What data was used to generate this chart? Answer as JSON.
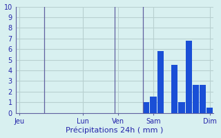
{
  "background_color": "#d8f0f0",
  "grid_color": "#b8d0d0",
  "bar_color": "#1a4fd6",
  "vline_color": "#6060a0",
  "xlabel": "Précipitations 24h ( mm )",
  "xlabel_color": "#2222aa",
  "tick_color": "#2222aa",
  "ylim": [
    0,
    10
  ],
  "yticks": [
    0,
    1,
    2,
    3,
    4,
    5,
    6,
    7,
    8,
    9,
    10
  ],
  "n_bars": 28,
  "bar_values": [
    0,
    0,
    0,
    0,
    0,
    0,
    0,
    0,
    0,
    0,
    0,
    0,
    0,
    0,
    0,
    0,
    0,
    0,
    1.0,
    1.5,
    5.8,
    0,
    4.5,
    1.0,
    6.8,
    2.6,
    2.6,
    0.5
  ],
  "vline_positions": [
    4,
    14,
    18
  ],
  "day_labels": [
    "Jeu",
    "Lun",
    "Ven",
    "Sam",
    "Dim"
  ],
  "day_tick_positions": [
    0,
    9,
    14,
    19,
    27
  ],
  "xlabel_fontsize": 8,
  "tick_fontsize": 7
}
